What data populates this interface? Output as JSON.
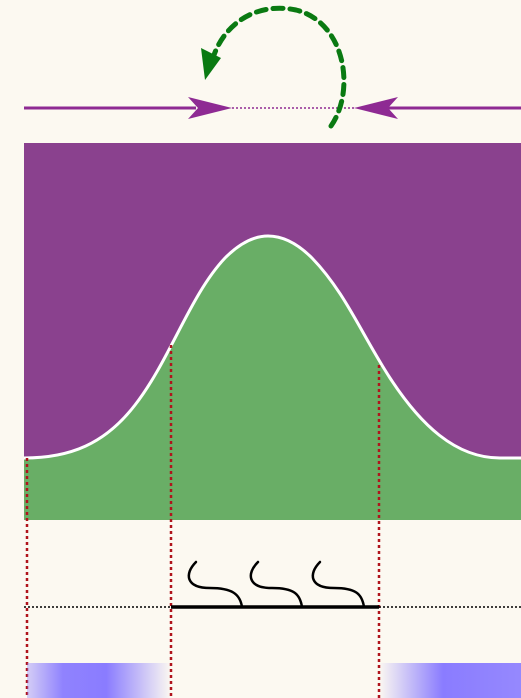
{
  "colors": {
    "background": "#fcf9f1",
    "purple_region": "#8a418e",
    "green_region": "#69ae66",
    "arrow_purple": "#8e2a93",
    "feedback_green": "#0a7a12",
    "guide_red": "#b0141c",
    "boundary_white": "#ffffff",
    "line_black": "#000000",
    "band_blue": "#8a7cff"
  },
  "icons": {
    "converging_arrows": "arrow-right-left-converging-icon",
    "feedback_loop": "curved-dashed-arrow-icon",
    "wavy_strands": "wave-strand-icon"
  }
}
